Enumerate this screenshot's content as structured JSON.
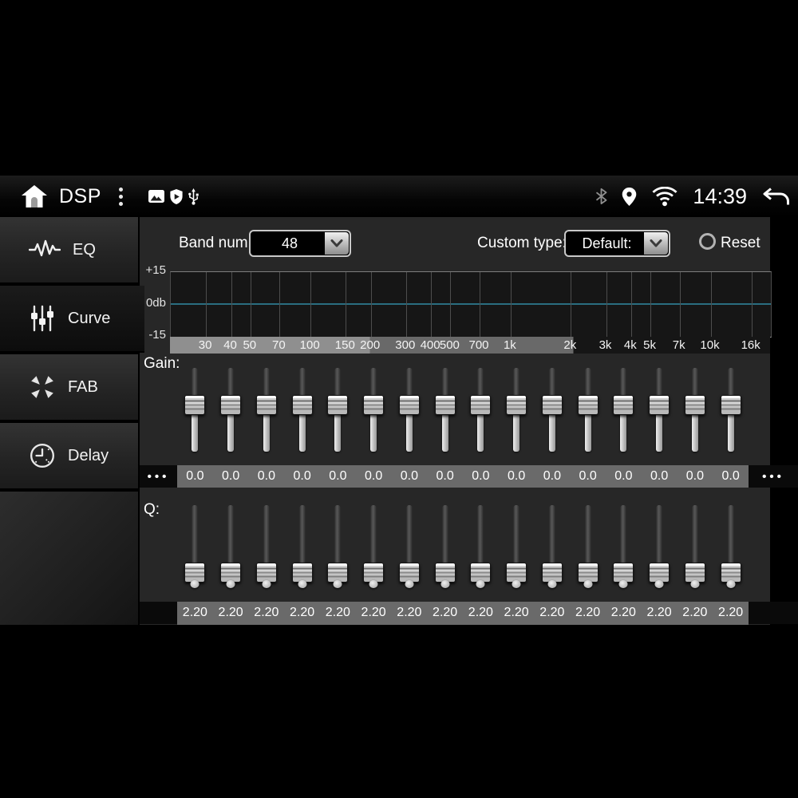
{
  "status_bar": {
    "app_title": "DSP",
    "time": "14:39",
    "icons": [
      "home-icon",
      "overflow-menu-icon",
      "image-icon",
      "shield-icon",
      "usb-icon",
      "bluetooth-icon",
      "location-icon",
      "wifi-icon",
      "back-icon"
    ]
  },
  "sidebar": {
    "items": [
      {
        "label": "EQ",
        "icon": "eq-waveform-icon",
        "selected": false
      },
      {
        "label": "Curve",
        "icon": "curve-sliders-icon",
        "selected": true
      },
      {
        "label": "FAB",
        "icon": "fab-arrows-icon",
        "selected": false
      },
      {
        "label": "Delay",
        "icon": "delay-clock-icon",
        "selected": false
      }
    ]
  },
  "controls": {
    "band_num_label": "Band num:",
    "band_num_value": "48",
    "custom_type_label": "Custom type:",
    "custom_type_value": "Default:",
    "reset_label": "Reset"
  },
  "chart": {
    "type": "line",
    "y_axis_labels": [
      "+15",
      "0db",
      "-15"
    ],
    "y_range_db": [
      -15,
      15
    ],
    "response_db": 0,
    "zero_line_color": "#2a6e80",
    "freq_ticks": [
      {
        "label": "30",
        "f": 30
      },
      {
        "label": "40",
        "f": 40
      },
      {
        "label": "50",
        "f": 50
      },
      {
        "label": "70",
        "f": 70
      },
      {
        "label": "100",
        "f": 100
      },
      {
        "label": "150",
        "f": 150
      },
      {
        "label": "200",
        "f": 200
      },
      {
        "label": "300",
        "f": 300
      },
      {
        "label": "400",
        "f": 400
      },
      {
        "label": "500",
        "f": 500
      },
      {
        "label": "700",
        "f": 700
      },
      {
        "label": "1k",
        "f": 1000
      },
      {
        "label": "2k",
        "f": 2000
      },
      {
        "label": "3k",
        "f": 3000
      },
      {
        "label": "4k",
        "f": 4000
      },
      {
        "label": "5k",
        "f": 5000
      },
      {
        "label": "7k",
        "f": 7000
      },
      {
        "label": "10k",
        "f": 10000
      },
      {
        "label": "16k",
        "f": 16000
      }
    ]
  },
  "gain": {
    "label": "Gain:",
    "more_indicator": "•••",
    "values": [
      "0.0",
      "0.0",
      "0.0",
      "0.0",
      "0.0",
      "0.0",
      "0.0",
      "0.0",
      "0.0",
      "0.0",
      "0.0",
      "0.0",
      "0.0",
      "0.0",
      "0.0",
      "0.0"
    ]
  },
  "q": {
    "label": "Q:",
    "values": [
      "2.20",
      "2.20",
      "2.20",
      "2.20",
      "2.20",
      "2.20",
      "2.20",
      "2.20",
      "2.20",
      "2.20",
      "2.20",
      "2.20",
      "2.20",
      "2.20",
      "2.20",
      "2.20"
    ]
  }
}
